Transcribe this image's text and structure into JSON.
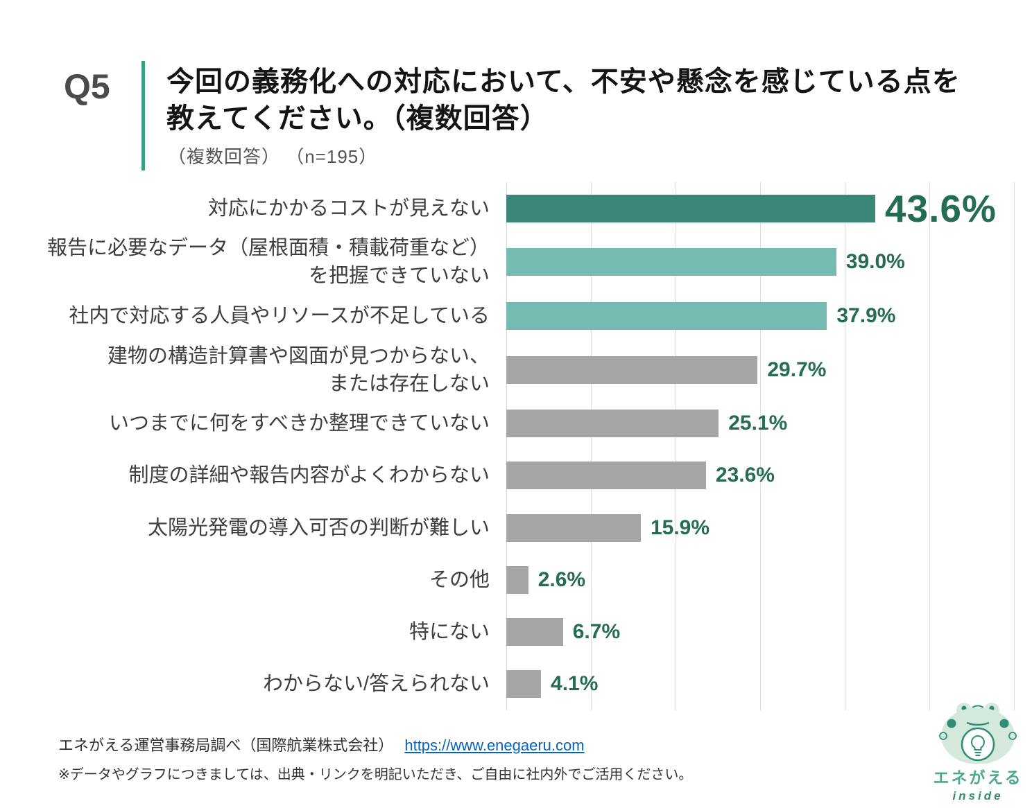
{
  "header": {
    "question_number": "Q5",
    "title": "今回の義務化への対応において、不安や懸念を感じている点を\n教えてください。（複数回答）",
    "subtitle": "（複数回答） （n=195）"
  },
  "chart_data": {
    "type": "bar",
    "orientation": "horizontal",
    "title": "今回の義務化への対応において、不安や懸念を感じている点を教えてください。（複数回答）",
    "sample_size": "n=195",
    "categories": [
      "対応にかかるコストが見えない",
      "報告に必要なデータ（屋根面積・積載荷重など）\nを把握できていない",
      "社内で対応する人員やリソースが不足している",
      "建物の構造計算書や図面が見つからない、\nまたは存在しない",
      "いつまでに何をすべきか整理できていない",
      "制度の詳細や報告内容がよくわからない",
      "太陽光発電の導入可否の判断が難しい",
      "その他",
      "特にない",
      "わからない/答えられない"
    ],
    "values": [
      43.6,
      39.0,
      37.9,
      29.7,
      25.1,
      23.6,
      15.9,
      2.6,
      6.7,
      4.1
    ],
    "value_labels": [
      "43.6%",
      "39.0%",
      "37.9%",
      "29.7%",
      "25.1%",
      "23.6%",
      "15.9%",
      "2.6%",
      "6.7%",
      "4.1%"
    ],
    "bar_colors": [
      "#3b8878",
      "#76bbb1",
      "#76bbb1",
      "#a6a6a6",
      "#a6a6a6",
      "#a6a6a6",
      "#a6a6a6",
      "#a6a6a6",
      "#a6a6a6",
      "#a6a6a6"
    ],
    "xlim": [
      0,
      60
    ],
    "gridline_interval": 10,
    "grid": true,
    "legend": false,
    "highlight_index": 0,
    "value_text_color": "#266b55",
    "xlabel": "",
    "ylabel": ""
  },
  "footer": {
    "source_text": "エネがえる運営事務局調べ（国際航業株式会社）",
    "source_link": "https://www.enegaeru.com",
    "note": "※データやグラフにつきましては、出典・リンクを明記いただき、ご自由に社内外でご活用ください。"
  },
  "logo": {
    "brand": "エネがえる",
    "sub_label": "inside"
  },
  "colors": {
    "accent_teal": "#35a183",
    "dark_bar": "#3b8878",
    "light_bar": "#76bbb1",
    "gray_bar": "#a6a6a6",
    "value_text": "#266b55",
    "link_blue": "#0563c1"
  }
}
